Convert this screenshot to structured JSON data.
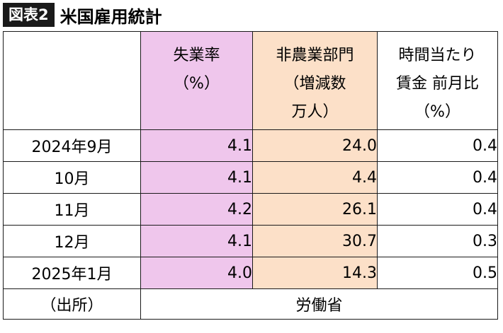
{
  "header": {
    "badge": "図表2",
    "title": "米国雇用統計"
  },
  "table": {
    "columns": [
      {
        "label": "失業率\n（%）",
        "background": "#efc6ec"
      },
      {
        "label": "非農業部門\n（増減数\n万人）",
        "background": "#fce0c8"
      },
      {
        "label": "時間当たり\n賃金 前月比\n（%）",
        "background": "#ffffff"
      }
    ],
    "rows": [
      {
        "label": "2024年9月",
        "values": [
          "4.1",
          "24.0",
          "0.4"
        ]
      },
      {
        "label": "10月",
        "values": [
          "4.1",
          "4.4",
          "0.4"
        ]
      },
      {
        "label": "11月",
        "values": [
          "4.2",
          "26.1",
          "0.4"
        ]
      },
      {
        "label": "12月",
        "values": [
          "4.1",
          "30.7",
          "0.3"
        ]
      },
      {
        "label": "2025年1月",
        "values": [
          "4.0",
          "14.3",
          "0.5"
        ]
      }
    ],
    "source": {
      "label": "（出所）",
      "value": "労働省"
    }
  }
}
